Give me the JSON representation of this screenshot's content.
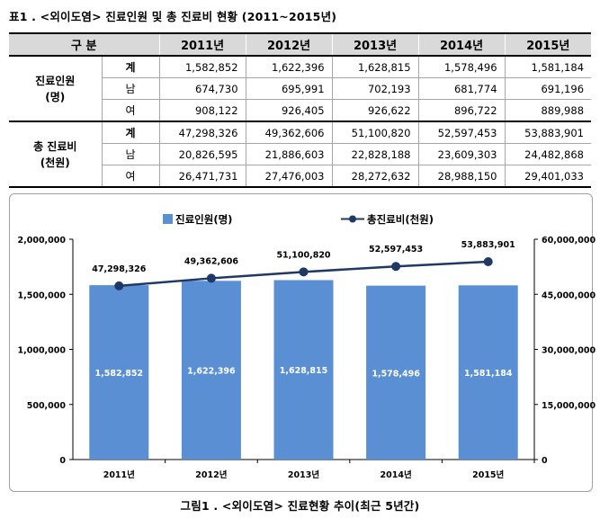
{
  "table_title": "표1 . <외이도염> 진료인원 및 총 진료비 현황 (2011~2015년)",
  "table": {
    "header": [
      "구 분",
      "2011년",
      "2012년",
      "2013년",
      "2014년",
      "2015년"
    ],
    "groups": [
      {
        "label_line1": "진료인원",
        "label_line2": "(명)",
        "rows": [
          {
            "sub": "계",
            "values": [
              "1,582,852",
              "1,622,396",
              "1,628,815",
              "1,578,496",
              "1,581,184"
            ]
          },
          {
            "sub": "남",
            "values": [
              "674,730",
              "695,991",
              "702,193",
              "681,774",
              "691,196"
            ]
          },
          {
            "sub": "여",
            "values": [
              "908,122",
              "926,405",
              "926,622",
              "896,722",
              "889,988"
            ]
          }
        ]
      },
      {
        "label_line1": "총 진료비",
        "label_line2": "(천원)",
        "rows": [
          {
            "sub": "계",
            "values": [
              "47,298,326",
              "49,362,606",
              "51,100,820",
              "52,597,453",
              "53,883,901"
            ]
          },
          {
            "sub": "남",
            "values": [
              "20,826,595",
              "21,886,603",
              "22,828,188",
              "23,609,303",
              "24,482,868"
            ]
          },
          {
            "sub": "여",
            "values": [
              "26,471,731",
              "27,476,003",
              "28,272,632",
              "28,988,150",
              "29,401,033"
            ]
          }
        ]
      }
    ]
  },
  "colors": {
    "bar": "#5b8fd3",
    "line": "#1f3864",
    "header_bg": "#d9d9d9"
  },
  "chart_data": {
    "type": "bar",
    "categories": [
      "2011년",
      "2012년",
      "2013년",
      "2014년",
      "2015년"
    ],
    "series": [
      {
        "name": "진료인원(명)",
        "type": "bar",
        "axis": "left",
        "values": [
          1582852,
          1622396,
          1628815,
          1578496,
          1581184
        ],
        "labels": [
          "1,582,852",
          "1,622,396",
          "1,628,815",
          "1,578,496",
          "1,581,184"
        ]
      },
      {
        "name": "총진료비(천원)",
        "type": "line",
        "axis": "right",
        "values": [
          47298326,
          49362606,
          51100820,
          52597453,
          53883901
        ],
        "labels": [
          "47,298,326",
          "49,362,606",
          "51,100,820",
          "52,597,453",
          "53,883,901"
        ]
      }
    ],
    "y_left": {
      "min": 0,
      "max": 2000000,
      "ticks": [
        0,
        500000,
        1000000,
        1500000,
        2000000
      ],
      "tick_labels": [
        "0",
        "500,000",
        "1,000,000",
        "1,500,000",
        "2,000,000"
      ]
    },
    "y_right": {
      "min": 0,
      "max": 60000000,
      "ticks": [
        0,
        15000000,
        30000000,
        45000000,
        60000000
      ],
      "tick_labels": [
        "0",
        "15,000,000",
        "30,000,000",
        "45,000,000",
        "60,000,000"
      ]
    },
    "legend_position": "top-center",
    "grid": false
  },
  "caption": "그림1 . <외이도염> 진료현황 추이(최근 5년간)"
}
